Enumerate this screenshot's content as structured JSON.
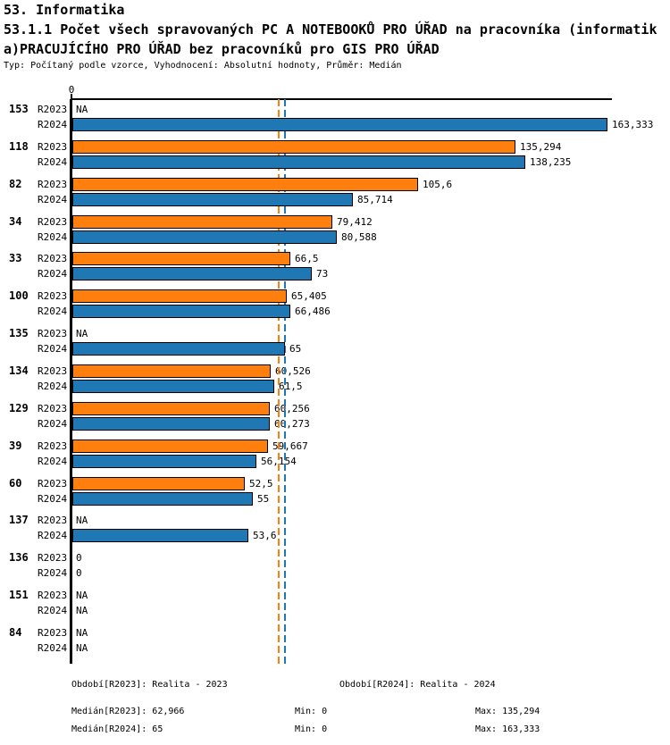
{
  "header": {
    "section": "53. Informatika",
    "title_line1": "53.1.1 Počet všech spravovaných PC A NOTEBOOKŮ PRO ÚŘAD na pracovníka (informatik",
    "title_line2": "a)PRACUJÍCÍHO PRO ÚŘAD bez pracovníků pro GIS PRO ÚŘAD",
    "meta": "Typ: Počítaný podle vzorce, Vyhodnocení: Absolutní hodnoty, Průměr: Medián"
  },
  "chart_data": {
    "type": "bar",
    "orientation": "horizontal",
    "axis": {
      "zero_tick": "0",
      "xlim": [
        0,
        165
      ],
      "grid": false
    },
    "categories": [
      "153",
      "118",
      "82",
      "34",
      "33",
      "100",
      "135",
      "134",
      "129",
      "39",
      "60",
      "137",
      "136",
      "151",
      "84"
    ],
    "series": [
      {
        "name": "R2023",
        "color": "#ff7f0e",
        "values": [
          null,
          135.294,
          105.6,
          79.412,
          66.5,
          65.405,
          null,
          60.526,
          60.256,
          59.667,
          52.5,
          null,
          0,
          null,
          null
        ],
        "labels": [
          "NA",
          "135,294",
          "105,6",
          "79,412",
          "66,5",
          "65,405",
          "NA",
          "60,526",
          "60,256",
          "59,667",
          "52,5",
          "NA",
          "0",
          "NA",
          "NA"
        ]
      },
      {
        "name": "R2024",
        "color": "#1f77b4",
        "values": [
          163.333,
          138.235,
          85.714,
          80.588,
          73,
          66.486,
          65,
          61.5,
          60.273,
          56.154,
          55,
          53.6,
          0,
          null,
          null
        ],
        "labels": [
          "163,333",
          "138,235",
          "85,714",
          "80,588",
          "73",
          "66,486",
          "65",
          "61,5",
          "60,273",
          "56,154",
          "55",
          "53,6",
          "0",
          "NA",
          "NA"
        ]
      }
    ],
    "medians": [
      {
        "series": "R2023",
        "value": 62.966,
        "label": "62,966",
        "color": "#ff7f0e",
        "style": "dashed"
      },
      {
        "series": "R2024",
        "value": 65,
        "label": "65",
        "color": "#1f77b4",
        "style": "dashed"
      }
    ]
  },
  "footer": {
    "period_r2023": "Období[R2023]: Realita - 2023",
    "period_r2024": "Období[R2024]: Realita - 2024",
    "median_r2023": "Medián[R2023]: 62,966",
    "min_r2023": "Min: 0",
    "max_r2023": "Max: 135,294",
    "median_r2024": "Medián[R2024]: 65",
    "min_r2024": "Min: 0",
    "max_r2024": "Max: 163,333"
  }
}
